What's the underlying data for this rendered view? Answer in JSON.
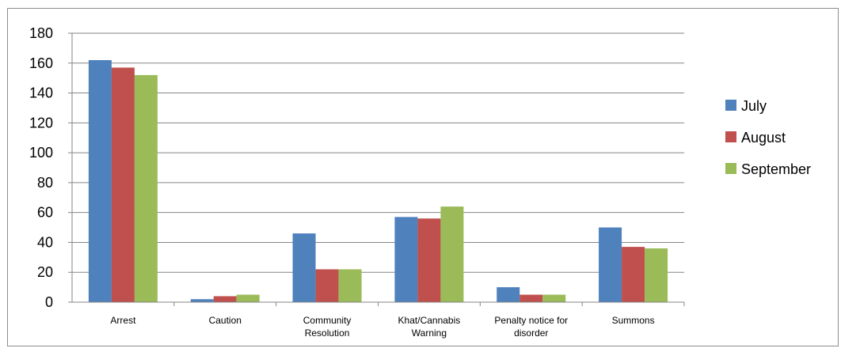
{
  "chart_data": {
    "type": "bar",
    "categories": [
      [
        "Arrest"
      ],
      [
        "Caution"
      ],
      [
        "Community",
        "Resolution"
      ],
      [
        "Khat/Cannabis",
        "Warning"
      ],
      [
        "Penalty notice for",
        "disorder"
      ],
      [
        "Summons"
      ]
    ],
    "series": [
      {
        "name": "July",
        "color": "#4f81bd",
        "values": [
          162,
          2,
          46,
          57,
          10,
          50
        ]
      },
      {
        "name": "August",
        "color": "#c0504d",
        "values": [
          157,
          4,
          22,
          56,
          5,
          37
        ]
      },
      {
        "name": "September",
        "color": "#9bbb59",
        "values": [
          152,
          5,
          22,
          64,
          5,
          36
        ]
      }
    ],
    "yticks": [
      0,
      20,
      40,
      60,
      80,
      100,
      120,
      140,
      160,
      180
    ],
    "ylim": [
      0,
      180
    ],
    "grid": true,
    "legend_position": "right",
    "title": "",
    "xlabel": "",
    "ylabel": ""
  }
}
